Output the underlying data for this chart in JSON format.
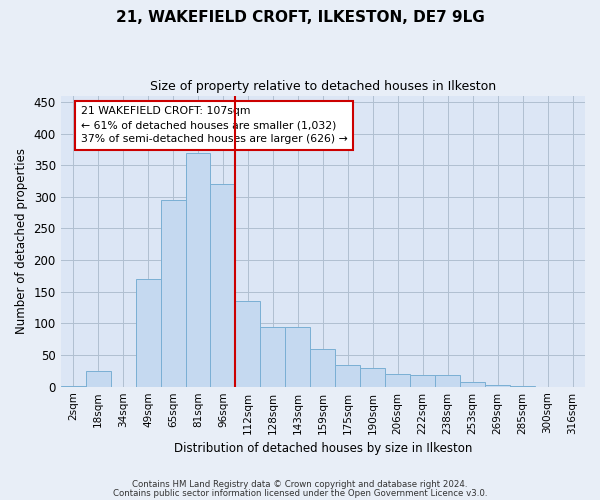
{
  "title": "21, WAKEFIELD CROFT, ILKESTON, DE7 9LG",
  "subtitle": "Size of property relative to detached houses in Ilkeston",
  "xlabel": "Distribution of detached houses by size in Ilkeston",
  "ylabel": "Number of detached properties",
  "footnote1": "Contains HM Land Registry data © Crown copyright and database right 2024.",
  "footnote2": "Contains public sector information licensed under the Open Government Licence v3.0.",
  "bar_labels": [
    "2sqm",
    "18sqm",
    "34sqm",
    "49sqm",
    "65sqm",
    "81sqm",
    "96sqm",
    "112sqm",
    "128sqm",
    "143sqm",
    "159sqm",
    "175sqm",
    "190sqm",
    "206sqm",
    "222sqm",
    "238sqm",
    "253sqm",
    "269sqm",
    "285sqm",
    "300sqm",
    "316sqm"
  ],
  "bar_values": [
    1,
    25,
    0,
    170,
    295,
    370,
    320,
    135,
    95,
    95,
    60,
    35,
    30,
    20,
    18,
    18,
    7,
    3,
    1,
    0,
    0
  ],
  "bar_color": "#c5d9f0",
  "bar_edge_color": "#7aafd4",
  "vline_color": "#cc0000",
  "annotation_text": "21 WAKEFIELD CROFT: 107sqm\n← 61% of detached houses are smaller (1,032)\n37% of semi-detached houses are larger (626) →",
  "annotation_box_color": "#ffffff",
  "annotation_box_edge": "#cc0000",
  "ylim": [
    0,
    460
  ],
  "yticks": [
    0,
    50,
    100,
    150,
    200,
    250,
    300,
    350,
    400,
    450
  ],
  "bg_color": "#e8eef7",
  "plot_bg_color": "#dce6f5",
  "grid_color": "#b0bfd0"
}
